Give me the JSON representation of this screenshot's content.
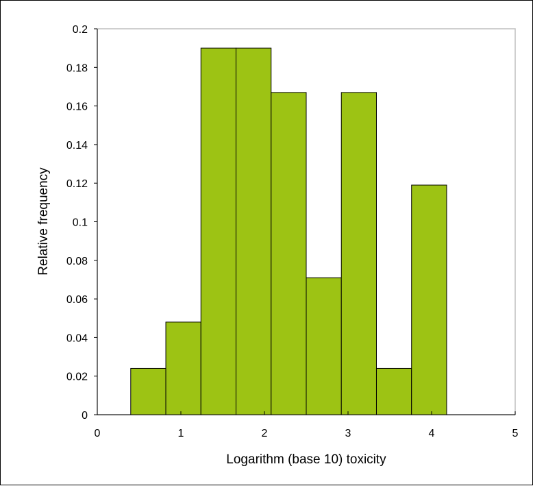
{
  "chart_data": {
    "type": "bar",
    "title": "",
    "xlabel": "Logarithm (base 10) toxicity",
    "ylabel": "Relative frequency",
    "xlim": [
      0,
      5
    ],
    "ylim": [
      0,
      0.2
    ],
    "x_ticks": [
      0,
      1,
      2,
      3,
      4,
      5
    ],
    "y_ticks": [
      0,
      0.02,
      0.04,
      0.06,
      0.08,
      0.1,
      0.12,
      0.14,
      0.16,
      0.18,
      0.2
    ],
    "x_tick_labels": [
      "0",
      "1",
      "2",
      "3",
      "4",
      "5"
    ],
    "y_tick_labels": [
      "0",
      "0.02",
      "0.04",
      "0.06",
      "0.08",
      "0.1",
      "0.12",
      "0.14",
      "0.16",
      "0.18",
      "0.2"
    ],
    "bins": [
      {
        "x0": 0.4,
        "x1": 0.82,
        "value": 0.024
      },
      {
        "x0": 0.82,
        "x1": 1.24,
        "value": 0.048
      },
      {
        "x0": 1.24,
        "x1": 1.66,
        "value": 0.19
      },
      {
        "x0": 1.66,
        "x1": 2.08,
        "value": 0.19
      },
      {
        "x0": 2.08,
        "x1": 2.5,
        "value": 0.167
      },
      {
        "x0": 2.5,
        "x1": 2.92,
        "value": 0.071
      },
      {
        "x0": 2.92,
        "x1": 3.34,
        "value": 0.167
      },
      {
        "x0": 3.34,
        "x1": 3.76,
        "value": 0.024
      },
      {
        "x0": 3.76,
        "x1": 4.18,
        "value": 0.119
      }
    ],
    "grid": false,
    "legend": "none",
    "bar_color": "#9DC314",
    "bar_edge_color": "#000000",
    "plot_border_color": "#BFBFBF"
  }
}
